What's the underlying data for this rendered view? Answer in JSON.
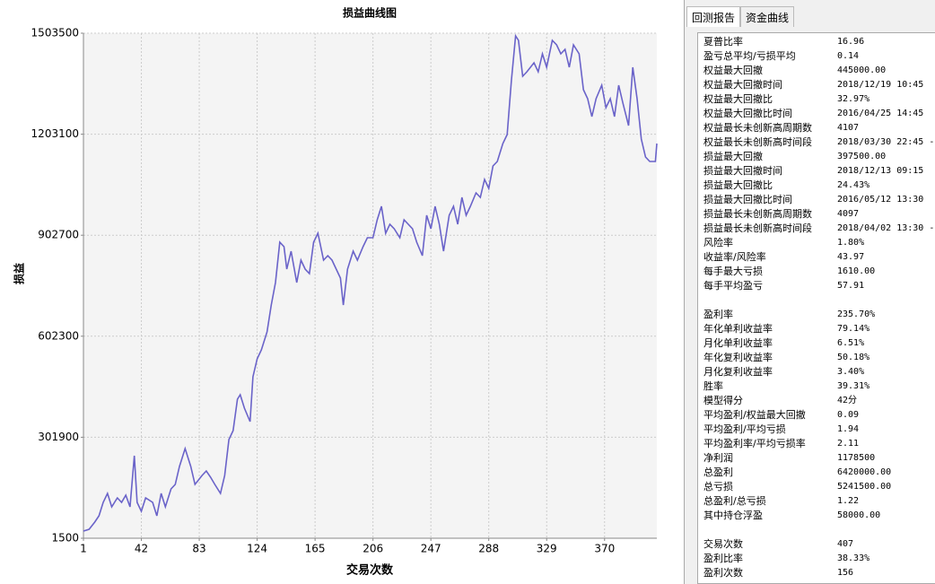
{
  "chart_data": {
    "type": "line",
    "title": "损益曲线图",
    "x_label": "交易次数",
    "y_label": "损益",
    "x": [
      1,
      5,
      9,
      12,
      15,
      18,
      21,
      25,
      28,
      31,
      34,
      37,
      39,
      42,
      45,
      50,
      53,
      56,
      59,
      63,
      66,
      69,
      73,
      77,
      80,
      85,
      88,
      91,
      94,
      98,
      101,
      104,
      107,
      110,
      112,
      115,
      119,
      121,
      124,
      127,
      131,
      134,
      137,
      140,
      143,
      145,
      148,
      152,
      155,
      158,
      161,
      164,
      167,
      171,
      174,
      177,
      180,
      183,
      185,
      188,
      192,
      195,
      199,
      202,
      206,
      209,
      212,
      215,
      218,
      221,
      225,
      228,
      231,
      234,
      237,
      241,
      244,
      247,
      250,
      253,
      256,
      260,
      263,
      266,
      269,
      272,
      275,
      279,
      282,
      285,
      288,
      291,
      294,
      298,
      301,
      304,
      307,
      309,
      312,
      315,
      320,
      323,
      326,
      329,
      333,
      336,
      339,
      342,
      345,
      348,
      352,
      355,
      358,
      361,
      364,
      368,
      371,
      374,
      377,
      380,
      383,
      387,
      390,
      393,
      396,
      399,
      402,
      406,
      407
    ],
    "series": [
      {
        "name": "损益",
        "color": "#6a63c9",
        "values": [
          22800,
          28200,
          49500,
          68200,
          108200,
          134900,
          94900,
          121600,
          108200,
          129600,
          94900,
          247000,
          108200,
          81500,
          121600,
          108200,
          68200,
          134900,
          94900,
          148200,
          161600,
          214900,
          268300,
          214900,
          161600,
          188300,
          201600,
          182900,
          161600,
          134900,
          188300,
          295000,
          321700,
          415000,
          428400,
          388400,
          348300,
          481700,
          535100,
          561800,
          615100,
          695200,
          761900,
          881900,
          868600,
          801900,
          855300,
          761900,
          828600,
          801900,
          788600,
          881900,
          908600,
          828600,
          841900,
          828600,
          801900,
          775200,
          695200,
          801900,
          855300,
          828600,
          868600,
          895300,
          895300,
          948600,
          988700,
          908600,
          935300,
          922000,
          895300,
          948600,
          935300,
          922000,
          881900,
          841900,
          962000,
          922000,
          988700,
          935300,
          855300,
          962000,
          988700,
          935300,
          1015300,
          962000,
          988700,
          1028700,
          1015300,
          1068700,
          1042000,
          1108700,
          1122100,
          1175400,
          1202100,
          1362200,
          1495600,
          1482200,
          1375500,
          1388900,
          1415500,
          1388900,
          1442200,
          1402200,
          1482200,
          1468900,
          1442200,
          1455600,
          1402200,
          1468900,
          1442200,
          1335500,
          1308800,
          1255500,
          1308800,
          1348800,
          1282100,
          1308800,
          1255500,
          1348800,
          1295500,
          1228800,
          1402200,
          1308800,
          1188800,
          1135400,
          1122100,
          1122100,
          1175400
        ]
      }
    ],
    "xlim": [
      1,
      407
    ],
    "xticks": [
      1,
      42,
      83,
      124,
      165,
      206,
      247,
      288,
      329,
      370
    ],
    "ylim": [
      1500,
      1503500
    ],
    "yticks": [
      1500,
      301900,
      602300,
      902700,
      1203100,
      1503500
    ],
    "grid": true
  },
  "panel": {
    "tabs": [
      "回测报告",
      "资金曲线"
    ],
    "groups": [
      [
        {
          "label": "夏普比率",
          "value": "16.96"
        },
        {
          "label": "盈亏总平均/亏损平均",
          "value": "0.14"
        },
        {
          "label": "权益最大回撤",
          "value": "445000.00"
        },
        {
          "label": "权益最大回撤时间",
          "value": "2018/12/19 10:45"
        },
        {
          "label": "权益最大回撤比",
          "value": "32.97%"
        },
        {
          "label": "权益最大回撤比时间",
          "value": "2016/04/25 14:45"
        },
        {
          "label": "权益最长未创新高周期数",
          "value": "4107"
        },
        {
          "label": "权益最长未创新高时间段",
          "value": "2018/03/30 22:45 -"
        },
        {
          "label": "损益最大回撤",
          "value": "397500.00"
        },
        {
          "label": "损益最大回撤时间",
          "value": "2018/12/13 09:15"
        },
        {
          "label": "损益最大回撤比",
          "value": "24.43%"
        },
        {
          "label": "损益最大回撤比时间",
          "value": "2016/05/12 13:30"
        },
        {
          "label": "损益最长未创新高周期数",
          "value": "4097"
        },
        {
          "label": "损益最长未创新高时间段",
          "value": "2018/04/02 13:30 -"
        },
        {
          "label": "风险率",
          "value": "1.80%"
        },
        {
          "label": "收益率/风险率",
          "value": "43.97"
        },
        {
          "label": "每手最大亏损",
          "value": "1610.00"
        },
        {
          "label": "每手平均盈亏",
          "value": "57.91"
        }
      ],
      [
        {
          "label": "盈利率",
          "value": "235.70%"
        },
        {
          "label": "年化单利收益率",
          "value": "79.14%"
        },
        {
          "label": "月化单利收益率",
          "value": "6.51%"
        },
        {
          "label": "年化复利收益率",
          "value": "50.18%"
        },
        {
          "label": "月化复利收益率",
          "value": "3.40%"
        },
        {
          "label": "胜率",
          "value": "39.31%"
        },
        {
          "label": "模型得分",
          "value": "42分"
        },
        {
          "label": "平均盈利/权益最大回撤",
          "value": "0.09"
        },
        {
          "label": "平均盈利/平均亏损",
          "value": "1.94"
        },
        {
          "label": "平均盈利率/平均亏损率",
          "value": "2.11"
        },
        {
          "label": "净利润",
          "value": "1178500"
        },
        {
          "label": "总盈利",
          "value": "6420000.00"
        },
        {
          "label": "总亏损",
          "value": "5241500.00"
        },
        {
          "label": "总盈利/总亏损",
          "value": "1.22"
        },
        {
          "label": "其中持仓浮盈",
          "value": "58000.00"
        }
      ],
      [
        {
          "label": "交易次数",
          "value": "407"
        },
        {
          "label": "盈利比率",
          "value": "38.33%"
        },
        {
          "label": "盈利次数",
          "value": "156"
        }
      ]
    ]
  }
}
